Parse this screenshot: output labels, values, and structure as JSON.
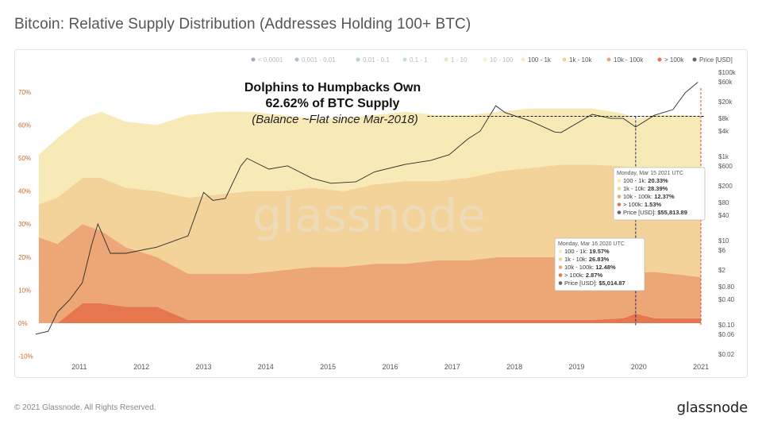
{
  "title": "Bitcoin: Relative Supply Distribution (Addresses Holding 100+ BTC)",
  "footer": {
    "copyright": "© 2021 Glassnode. All Rights Reserved.",
    "logo": "glassnode"
  },
  "watermark": "glassnode",
  "annotation": {
    "line1": "Dolphins to Humpbacks Own",
    "line2": "62.62% of BTC Supply",
    "line3": "(Balance ~Flat since Mar-2018)"
  },
  "tooltips": [
    {
      "date": "Monday, Mar 15 2021 UTC",
      "rows": [
        {
          "label": "100 - 1k:",
          "value": "20.33%",
          "color": "#f8eab6"
        },
        {
          "label": "1k - 10k:",
          "value": "28.39%",
          "color": "#f3d39a"
        },
        {
          "label": "10k - 100k:",
          "value": "12.37%",
          "color": "#eda777"
        },
        {
          "label": "> 100k:",
          "value": "1.53%",
          "color": "#e5764d"
        },
        {
          "label": "Price [USD]:",
          "value": "$55,813.89",
          "color": "#666666"
        }
      ]
    },
    {
      "date": "Monday, Mar 16 2020 UTC",
      "rows": [
        {
          "label": "100 - 1k:",
          "value": "19.57%",
          "color": "#f8eab6"
        },
        {
          "label": "1k - 10k:",
          "value": "26.83%",
          "color": "#f3d39a"
        },
        {
          "label": "10k - 100k:",
          "value": "12.48%",
          "color": "#eda777"
        },
        {
          "label": "> 100k:",
          "value": "2.87%",
          "color": "#e5764d"
        },
        {
          "label": "Price [USD]:",
          "value": "$5,014.87",
          "color": "#666666"
        }
      ]
    }
  ],
  "chart_data": {
    "type": "area",
    "title": "Bitcoin: Relative Supply Distribution (Addresses Holding 100+ BTC)",
    "x_ticks": [
      "2011",
      "2012",
      "2013",
      "2014",
      "2015",
      "2016",
      "2017",
      "2018",
      "2019",
      "2020",
      "2021"
    ],
    "y_left_ticks": [
      "70%",
      "60%",
      "50%",
      "40%",
      "30%",
      "20%",
      "10%",
      "0%",
      "-10%"
    ],
    "y_left_range": [
      -10,
      75
    ],
    "y_right_ticks": [
      "$100k",
      "$60k",
      "$20k",
      "$8k",
      "$4k",
      "$1k",
      "$600",
      "$200",
      "$80",
      "$40",
      "$10",
      "$6",
      "$2",
      "$0.80",
      "$0.40",
      "$0.10",
      "$0.06",
      "$0.02"
    ],
    "y_right_scale": "log",
    "stacked": true,
    "legend": [
      {
        "label": "< 0.0001",
        "color": "#4d4f8c",
        "visible": false
      },
      {
        "label": "0.001 - 0.01",
        "color": "#5a7fb0",
        "visible": false
      },
      {
        "label": "0.01 - 0.1",
        "color": "#6aa3b5",
        "visible": false
      },
      {
        "label": "0.1 - 1",
        "color": "#86c39a",
        "visible": false
      },
      {
        "label": "1 - 10",
        "color": "#b8d98a",
        "visible": false
      },
      {
        "label": "10 - 100",
        "color": "#e7e7a3",
        "visible": false
      },
      {
        "label": "100 - 1k",
        "color": "#f8eab6",
        "visible": true
      },
      {
        "label": "1k - 10k",
        "color": "#f3d39a",
        "visible": true
      },
      {
        "label": "10k - 100k",
        "color": "#eda777",
        "visible": true
      },
      {
        "label": "> 100k",
        "color": "#e5764d",
        "visible": true
      },
      {
        "label": "Price [USD]",
        "color": "#666666",
        "visible": true
      }
    ],
    "x": [
      2010.6,
      2010.9,
      2011.3,
      2011.6,
      2012.0,
      2012.5,
      2013.0,
      2013.5,
      2014.0,
      2014.5,
      2015.0,
      2015.5,
      2016.0,
      2016.5,
      2017.0,
      2017.5,
      2018.0,
      2018.5,
      2019.0,
      2019.5,
      2020.0,
      2020.2,
      2020.5,
      2021.0,
      2021.25
    ],
    "series": [
      {
        "name": "> 100k",
        "values": [
          0,
          0,
          6,
          6,
          5,
          5,
          1,
          1,
          1,
          1,
          1,
          1,
          1,
          1,
          1,
          1,
          1,
          1,
          1,
          1,
          1.5,
          2.9,
          1.5,
          1.5,
          1.5
        ]
      },
      {
        "name": "10k - 100k",
        "values": [
          26,
          24,
          24,
          22,
          18,
          15,
          14,
          14,
          14,
          15,
          16,
          16,
          17,
          17,
          18,
          18,
          19,
          19,
          19,
          19,
          18,
          12.5,
          14,
          13,
          12.4
        ]
      },
      {
        "name": "1k - 10k",
        "values": [
          10,
          14,
          14,
          16,
          18,
          20,
          23,
          24,
          25,
          24,
          24,
          23,
          24,
          25,
          24,
          25,
          26,
          27,
          28,
          28,
          28,
          26.8,
          28,
          28.5,
          28.4
        ]
      },
      {
        "name": "100 - 1k",
        "values": [
          15,
          18,
          18,
          20,
          20,
          20,
          25,
          25,
          24,
          23,
          21,
          22,
          21,
          21,
          20,
          19,
          18,
          18,
          17,
          17,
          16,
          19.6,
          19.5,
          20,
          20.3
        ]
      }
    ],
    "price": {
      "name": "Price [USD]",
      "x": [
        2010.55,
        2010.75,
        2010.9,
        2011.1,
        2011.3,
        2011.45,
        2011.55,
        2011.75,
        2012.0,
        2012.5,
        2013.0,
        2013.25,
        2013.4,
        2013.6,
        2013.85,
        2013.95,
        2014.3,
        2014.6,
        2015.0,
        2015.3,
        2015.7,
        2016.0,
        2016.5,
        2016.9,
        2017.2,
        2017.5,
        2017.7,
        2017.95,
        2018.1,
        2018.5,
        2018.9,
        2019.0,
        2019.5,
        2019.8,
        2020.0,
        2020.2,
        2020.5,
        2020.8,
        2021.0,
        2021.2
      ],
      "values": [
        0.06,
        0.07,
        0.2,
        0.4,
        1.0,
        8,
        25,
        5,
        5,
        7,
        13,
        140,
        90,
        100,
        600,
        900,
        500,
        600,
        300,
        230,
        250,
        430,
        650,
        800,
        1100,
        2600,
        4000,
        16000,
        11000,
        7000,
        3800,
        3700,
        10000,
        8000,
        8000,
        5000,
        9500,
        13000,
        33000,
        58000
      ]
    }
  }
}
